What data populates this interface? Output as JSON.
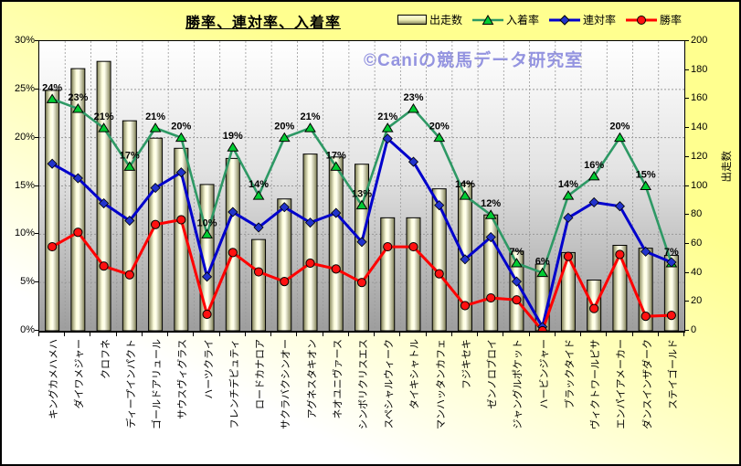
{
  "chart_data": {
    "type": "bar",
    "subtype": "bar-line-combo",
    "title": "勝率、連対率、入着率",
    "watermark": "©Caniの競馬データ研究室",
    "grid": true,
    "legend_position": "top-right",
    "categories": [
      "キングカメハメハ",
      "ダイワメジャー",
      "クロフネ",
      "ディープインパクト",
      "ゴールドアリュール",
      "サウスヴィグラス",
      "ハーツクライ",
      "フレンチデピュティ",
      "ロードカナロア",
      "サクラバクシンオー",
      "アグネスタキオン",
      "ネオユニヴァース",
      "シンボリクリスエス",
      "スペシャルウィーク",
      "タイキシャトル",
      "マンハッタンカフェ",
      "フジキセキ",
      "ゼンノロブロイ",
      "ジャングルポケット",
      "ハービンジャー",
      "ブラックタイド",
      "ヴィクトワールピサ",
      "エンパイアメーカー",
      "ダンスインザダーク",
      "ステイゴールド"
    ],
    "series": [
      {
        "name": "出走数",
        "type": "bar",
        "axis": "right",
        "values": [
          166,
          181,
          186,
          145,
          133,
          126,
          101,
          119,
          63,
          91,
          122,
          120,
          115,
          78,
          78,
          98,
          102,
          80,
          55,
          46,
          54,
          35,
          59,
          57,
          52
        ]
      },
      {
        "name": "入着率",
        "type": "line",
        "marker": "triangle",
        "axis": "left",
        "unit": "%",
        "point_labels": true,
        "values": [
          24,
          23,
          21,
          17,
          21,
          20,
          10,
          19,
          14,
          20,
          21,
          17,
          13,
          21,
          23,
          20,
          14,
          12,
          7,
          6,
          14,
          16,
          20,
          15,
          7
        ]
      },
      {
        "name": "連対率",
        "type": "line",
        "marker": "diamond",
        "axis": "left",
        "unit": "%",
        "point_labels": false,
        "values": [
          17.3,
          15.8,
          13.2,
          11.4,
          14.8,
          16.4,
          5.6,
          12.3,
          10.7,
          12.8,
          11.2,
          12.2,
          9.2,
          19.9,
          17.5,
          13,
          7.4,
          9.7,
          5.1,
          0.4,
          11.7,
          13.3,
          12.9,
          8.2,
          7.1
        ]
      },
      {
        "name": "勝率",
        "type": "line",
        "marker": "circle",
        "axis": "left",
        "unit": "%",
        "point_labels": false,
        "values": [
          8.7,
          10.2,
          6.7,
          5.8,
          11,
          11.5,
          1.7,
          8.1,
          6.1,
          5.1,
          7,
          6.4,
          5,
          8.7,
          8.7,
          5.9,
          2.6,
          3.4,
          3.2,
          0,
          7.7,
          2.3,
          7.9,
          1.5,
          1.6
        ]
      }
    ],
    "axes": {
      "left": {
        "min": 0,
        "max": 30,
        "ticks": [
          "30%",
          "25%",
          "20%",
          "15%",
          "10%",
          "5%",
          "0%"
        ]
      },
      "right": {
        "min": 0,
        "max": 200,
        "ticks": [
          "200",
          "180",
          "160",
          "140",
          "120",
          "100",
          "80",
          "60",
          "40",
          "20",
          "0"
        ],
        "title": "出走数"
      }
    }
  },
  "colors": {
    "background": "#ffff99",
    "plot_top": "#ffffff",
    "plot_bottom": "#9d9d9d",
    "bar_light": "#ffffe0",
    "bar_dark": "#7d7d52",
    "place_line": "#2e9965",
    "place_marker": "#00cc33",
    "quinella_line": "#0000cc",
    "quinella_marker": "#2233cc",
    "win_line": "#ff0000",
    "win_marker": "#ff1111",
    "gridline": "#999999",
    "watermark": "#9494e0"
  }
}
